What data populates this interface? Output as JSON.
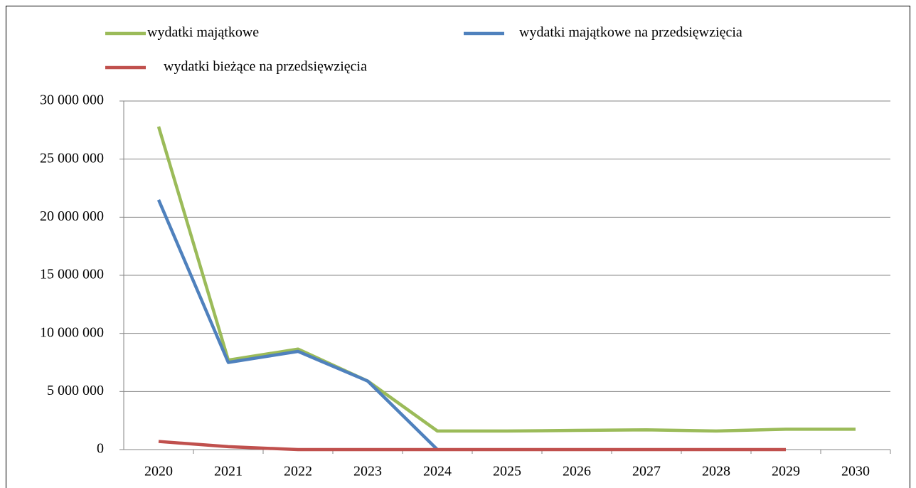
{
  "chart_data": {
    "type": "line",
    "categories": [
      "2020",
      "2021",
      "2022",
      "2023",
      "2024",
      "2025",
      "2026",
      "2027",
      "2028",
      "2029",
      "2030"
    ],
    "series": [
      {
        "name": "wydatki majątkowe",
        "color": "#9bbb59",
        "values": [
          27800000,
          7700000,
          8650000,
          5900000,
          1600000,
          1600000,
          1650000,
          1700000,
          1600000,
          1750000,
          1750000
        ]
      },
      {
        "name": "wydatki majątkowe na przedsięwzięcia",
        "color": "#4f81bd",
        "values": [
          21500000,
          7500000,
          8450000,
          5900000,
          0,
          null,
          null,
          null,
          null,
          null,
          null
        ]
      },
      {
        "name": "wydatki bieżące na przedsięwzięcia",
        "color": "#c0504d",
        "values": [
          700000,
          250000,
          0,
          0,
          0,
          0,
          0,
          0,
          0,
          0,
          null
        ]
      }
    ],
    "ylim": [
      0,
      30000000
    ],
    "yticks": [
      0,
      {
        "value": 5000000,
        "label": "5 000 000"
      },
      {
        "value": 10000000,
        "label": "10 000 000"
      },
      {
        "value": 15000000,
        "label": "15 000 000"
      },
      {
        "value": 20000000,
        "label": "20 000 000"
      },
      {
        "value": 25000000,
        "label": "25 000 000"
      },
      {
        "value": 30000000,
        "label": "30 000 000"
      }
    ],
    "grid": true,
    "legend": "top"
  }
}
